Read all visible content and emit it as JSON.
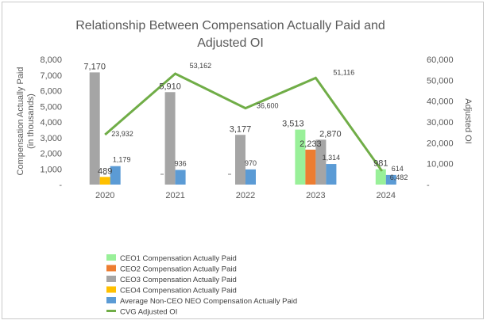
{
  "chart_data": {
    "type": "bar+line",
    "title": "Relationship Between Compensation Actually Paid and Adjusted OI",
    "title_lines": [
      "Relationship Between Compensation Actually Paid and",
      "Adjusted OI"
    ],
    "ylabel_lines": [
      "Compensation Actually Paid",
      "(in thousands)"
    ],
    "y2label": "Adjusted OI",
    "categories": [
      "2020",
      "2021",
      "2022",
      "2023",
      "2024"
    ],
    "ylim": [
      0,
      8000
    ],
    "y2lim": [
      0,
      60000
    ],
    "y_ticks": [
      "-",
      "1,000",
      "2,000",
      "3,000",
      "4,000",
      "5,000",
      "6,000",
      "7,000",
      "8,000"
    ],
    "y2_ticks": [
      "-",
      "10,000",
      "20,000",
      "30,000",
      "40,000",
      "50,000",
      "60,000"
    ],
    "series": [
      {
        "name": "CEO1 Compensation Actually Paid",
        "type": "bar",
        "color": "#99f099",
        "values": [
          null,
          null,
          null,
          3513,
          981
        ],
        "labels": [
          null,
          null,
          null,
          "3,513",
          "981"
        ]
      },
      {
        "name": "CEO2 Compensation Actually Paid",
        "type": "bar",
        "color": "#ed7d31",
        "values": [
          null,
          null,
          null,
          2233,
          null
        ],
        "labels": [
          null,
          null,
          null,
          "2,233",
          null
        ]
      },
      {
        "name": "CEO3 Compensation Actually Paid",
        "type": "bar",
        "color": "#a5a5a5",
        "values": [
          7170,
          5910,
          3177,
          2870,
          null
        ],
        "labels": [
          "7,170",
          "5,910",
          "3,177",
          "2,870",
          null
        ]
      },
      {
        "name": "CEO4 Compensation Actually Paid",
        "type": "bar",
        "color": "#ffc000",
        "values": [
          489,
          null,
          null,
          null,
          null
        ],
        "labels": [
          "489",
          null,
          null,
          null,
          null
        ]
      },
      {
        "name": "Average Non-CEO NEO Compensation Actually Paid",
        "type": "bar",
        "color": "#5b9bd5",
        "values": [
          1179,
          936,
          970,
          1314,
          614
        ],
        "labels": [
          "1,179",
          "936",
          "970",
          "1,314",
          "614"
        ]
      },
      {
        "name": "CVG Adjusted OI",
        "type": "line",
        "axis": "secondary",
        "color": "#70ad47",
        "values": [
          23932,
          53162,
          36600,
          51116,
          6482
        ],
        "labels": [
          "23,932",
          "53,162",
          "36,600",
          "51,116",
          "6,482"
        ]
      }
    ]
  }
}
